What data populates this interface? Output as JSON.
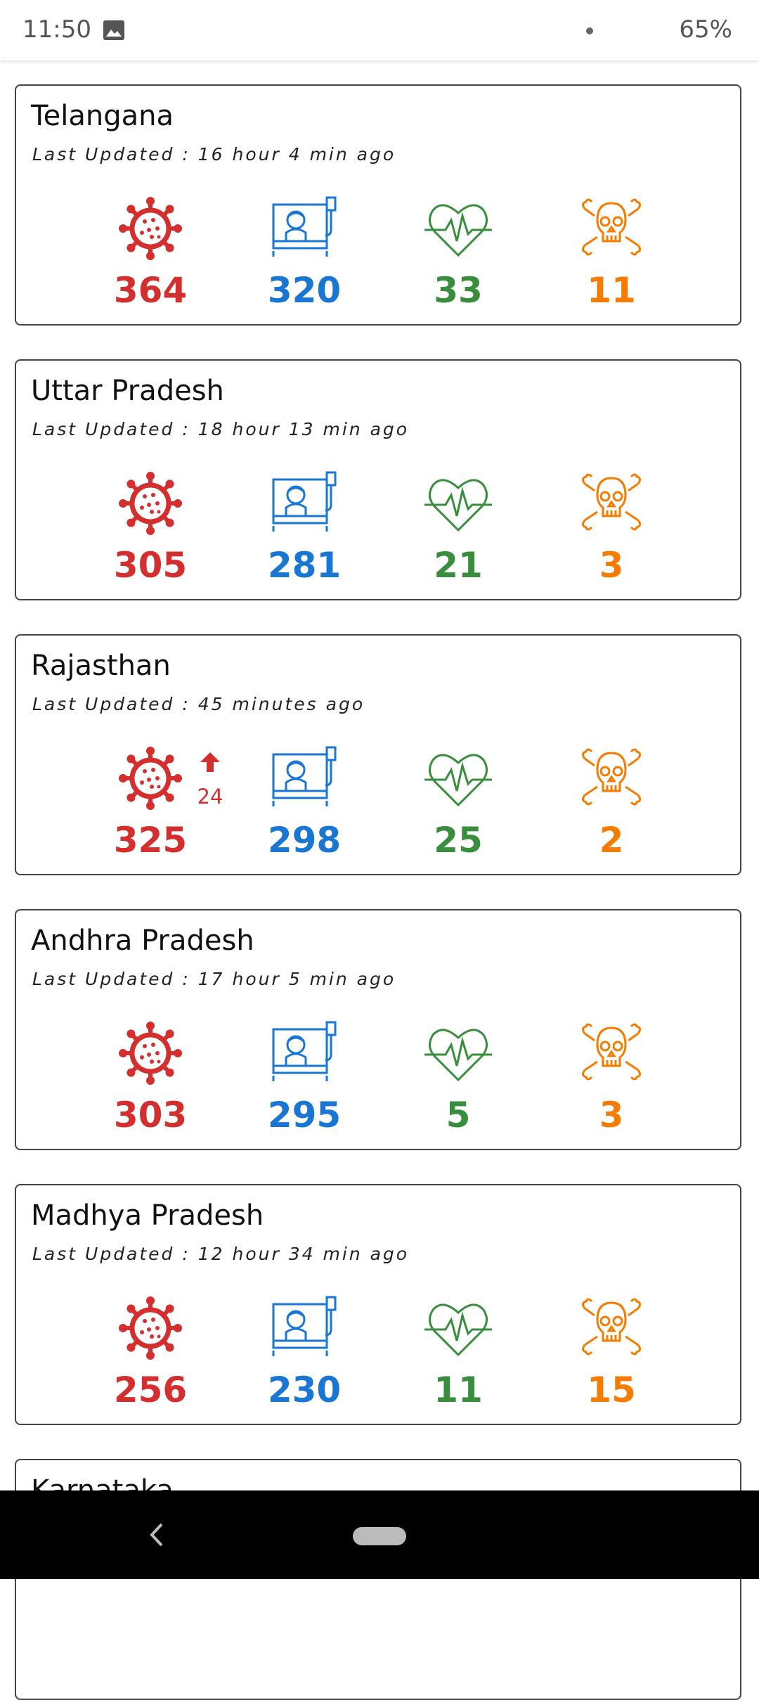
{
  "status_bar": {
    "time": "11:50",
    "battery": "65%"
  },
  "cards": [
    {
      "state": "Telangana",
      "last_updated": "Last Updated : 16 hour 4 min ago",
      "confirmed": 364,
      "active": 320,
      "recovered": 33,
      "deaths": 11
    },
    {
      "state": "Uttar Pradesh",
      "last_updated": "Last Updated : 18 hour 13 min ago",
      "confirmed": 305,
      "active": 281,
      "recovered": 21,
      "deaths": 3
    },
    {
      "state": "Rajasthan",
      "last_updated": "Last Updated : 45 minutes ago",
      "confirmed": 325,
      "confirmed_delta": 24,
      "active": 298,
      "recovered": 25,
      "deaths": 2
    },
    {
      "state": "Andhra Pradesh",
      "last_updated": "Last Updated : 17 hour 5 min ago",
      "confirmed": 303,
      "active": 295,
      "recovered": 5,
      "deaths": 3
    },
    {
      "state": "Madhya Pradesh",
      "last_updated": "Last Updated : 12 hour 34 min ago",
      "confirmed": 256,
      "active": 230,
      "recovered": 11,
      "deaths": 15
    },
    {
      "state": "Karnataka"
    }
  ]
}
